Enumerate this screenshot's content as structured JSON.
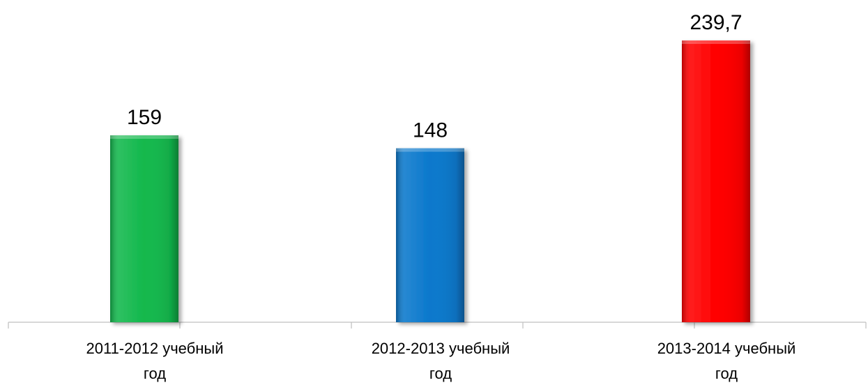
{
  "chart_data": {
    "type": "bar",
    "categories": [
      [
        "2011-2012 учебный",
        "год"
      ],
      [
        "2012-2013 учебный",
        "год"
      ],
      [
        "2013-2014 учебный",
        "год"
      ]
    ],
    "values": [
      159,
      148,
      239.7
    ],
    "value_labels": [
      "159",
      "148",
      "239,7"
    ],
    "colors": [
      "#12b84c",
      "#0a78cc",
      "#ff0000"
    ],
    "ylim": [
      0,
      239.7
    ],
    "grid": false,
    "legend": "none",
    "title": "",
    "xlabel": "",
    "ylabel": ""
  }
}
